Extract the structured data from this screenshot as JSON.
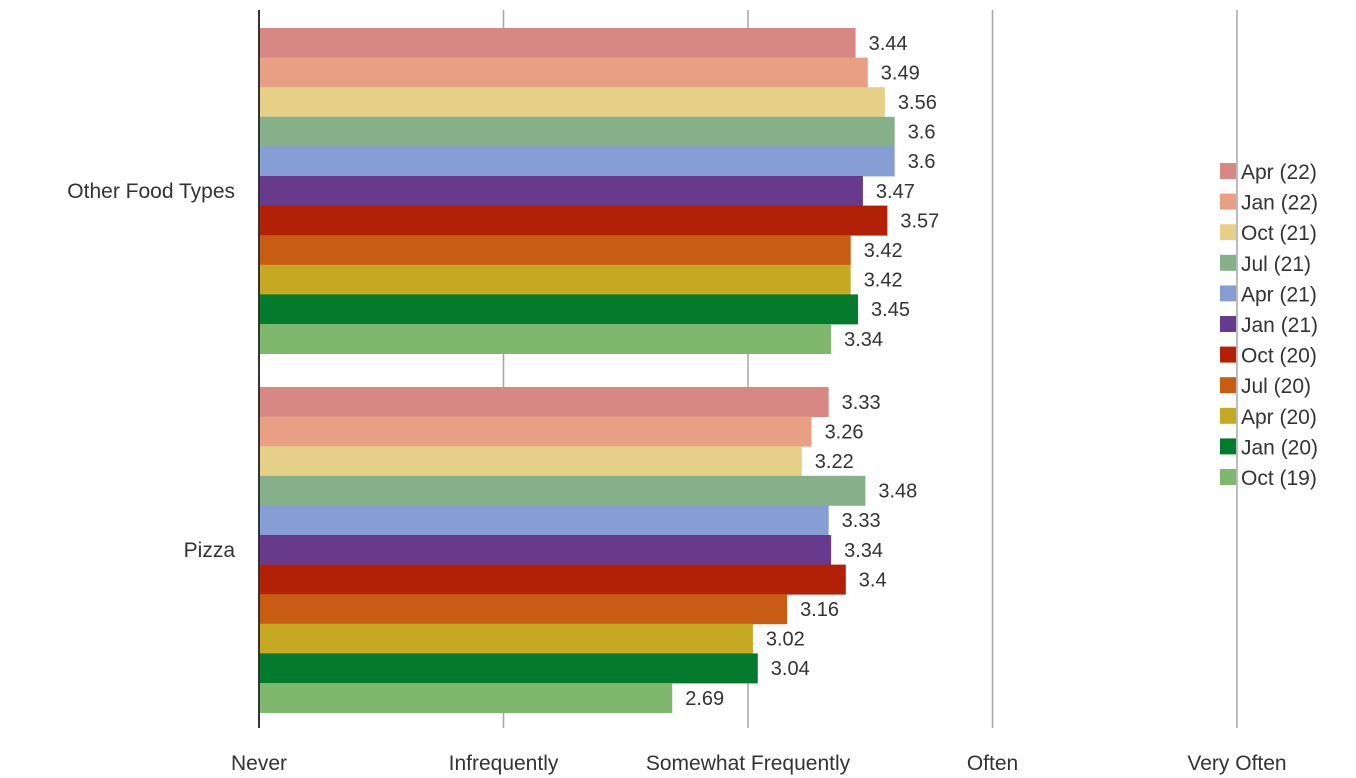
{
  "chart_data": {
    "type": "bar",
    "orientation": "horizontal",
    "categories": [
      "Other Food Types",
      "Pizza"
    ],
    "x_ticks": [
      {
        "value": 1,
        "label": "Never"
      },
      {
        "value": 2,
        "label": "Infrequently"
      },
      {
        "value": 3,
        "label": "Somewhat Frequently"
      },
      {
        "value": 4,
        "label": "Often"
      },
      {
        "value": 5,
        "label": "Very Often"
      }
    ],
    "xlim": [
      1,
      5
    ],
    "grid": true,
    "legend_position": "right",
    "series": [
      {
        "name": "Apr (22)",
        "color": "#d88884",
        "values": [
          3.44,
          3.33
        ]
      },
      {
        "name": "Jan (22)",
        "color": "#e8a084",
        "values": [
          3.49,
          3.26
        ]
      },
      {
        "name": "Oct (21)",
        "color": "#e6d088",
        "values": [
          3.56,
          3.22
        ]
      },
      {
        "name": "Jul (21)",
        "color": "#86b08a",
        "values": [
          3.6,
          3.48
        ]
      },
      {
        "name": "Apr (21)",
        "color": "#879ed4",
        "values": [
          3.6,
          3.33
        ]
      },
      {
        "name": "Jan (21)",
        "color": "#683a8e",
        "values": [
          3.47,
          3.34
        ]
      },
      {
        "name": "Oct (20)",
        "color": "#b22006",
        "values": [
          3.57,
          3.4
        ]
      },
      {
        "name": "Jul (20)",
        "color": "#c85c12",
        "values": [
          3.42,
          3.16
        ]
      },
      {
        "name": "Apr (20)",
        "color": "#c6a822",
        "values": [
          3.42,
          3.02
        ]
      },
      {
        "name": "Jan (20)",
        "color": "#037a2c",
        "values": [
          3.45,
          3.04
        ]
      },
      {
        "name": "Oct (19)",
        "color": "#7fb86c",
        "values": [
          3.34,
          2.69
        ]
      }
    ]
  }
}
